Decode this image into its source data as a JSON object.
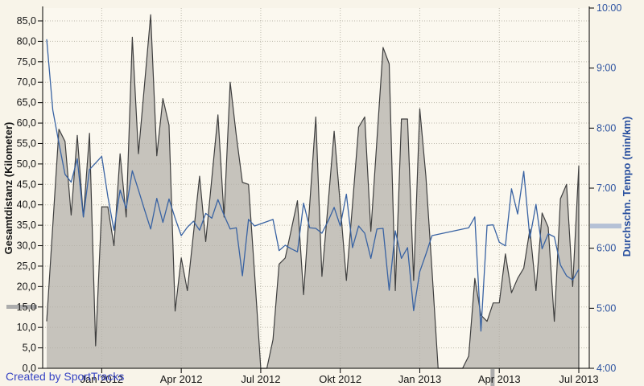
{
  "watermark": "Created by SportTracks",
  "chart_data": {
    "type": "area",
    "title": "",
    "x_unit": "week",
    "x_ticks": [
      {
        "label": "Jan 2012",
        "week": 9
      },
      {
        "label": "Apr 2012",
        "week": 22
      },
      {
        "label": "Jul 2012",
        "week": 35
      },
      {
        "label": "Okt 2012",
        "week": 48
      },
      {
        "label": "Jan 2013",
        "week": 61
      },
      {
        "label": "Apr 2013",
        "week": 74
      },
      {
        "label": "Jul 2013",
        "week": 87
      }
    ],
    "left_axis": {
      "title": "Gesamtdistanz (Kilometer)",
      "min": 0,
      "max": 85,
      "tick_step": 5,
      "tick_labels": [
        "0,0",
        "5,0",
        "10,0",
        "15,0",
        "20,0",
        "25,0",
        "30,0",
        "35,0",
        "40,0",
        "45,0",
        "50,0",
        "55,0",
        "60,0",
        "65,0",
        "70,0",
        "75,0",
        "80,0",
        "85,0"
      ]
    },
    "right_axis": {
      "title": "Durchschn. Tempo (min/km)",
      "min": 4,
      "max": 10,
      "tick_step": 1,
      "tick_labels": [
        "4:00",
        "5:00",
        "6:00",
        "7:00",
        "8:00",
        "9:00",
        "10:00"
      ]
    },
    "series": [
      {
        "name": "Gesamtdistanz (Kilometer)",
        "type": "area",
        "axis": "left",
        "fill": "rgba(177,175,168,0.72)",
        "outline": "#3F3F3F",
        "values": [
          11.5,
          35,
          58.5,
          55.5,
          37.5,
          57,
          37,
          57.5,
          5.5,
          39.5,
          39.5,
          30,
          52.5,
          37,
          81,
          52.5,
          69.5,
          86.5,
          52,
          66,
          59.5,
          14,
          27,
          19,
          33,
          47,
          31,
          46.5,
          62,
          37,
          70,
          57,
          45.5,
          45,
          23,
          0,
          0,
          7,
          25.5,
          27,
          34,
          41,
          18,
          40,
          61.5,
          22.5,
          40,
          58,
          40,
          21.5,
          40,
          59,
          61.5,
          33.5,
          56,
          78.5,
          74.5,
          19,
          61,
          61,
          21.5,
          63.5,
          47,
          24,
          0,
          0,
          0,
          0,
          0,
          3,
          22,
          13,
          11.5,
          16,
          16,
          28,
          18.5,
          22,
          24.5,
          34,
          19,
          38,
          34.5,
          11.5,
          41.5,
          45,
          20,
          49.5
        ]
      },
      {
        "name": "Durchschn. Tempo (min/km)",
        "type": "line",
        "axis": "right",
        "color": "#3963A3",
        "values": [
          9.48,
          8.3,
          7.75,
          7.23,
          7.1,
          7.49,
          6.52,
          7.31,
          7.42,
          7.53,
          6.86,
          6.3,
          6.97,
          6.66,
          7.29,
          6.97,
          6.64,
          6.32,
          6.83,
          6.43,
          6.82,
          6.5,
          6.21,
          6.35,
          6.45,
          6.3,
          6.58,
          6.5,
          6.81,
          6.55,
          6.32,
          6.34,
          5.54,
          6.48,
          6.37,
          null,
          null,
          6.48,
          5.96,
          6.05,
          5.99,
          5.94,
          6.75,
          6.34,
          6.33,
          6.25,
          6.45,
          6.68,
          6.37,
          6.9,
          6.01,
          6.37,
          6.25,
          5.83,
          6.32,
          6.33,
          5.3,
          6.29,
          5.83,
          6.01,
          4.96,
          5.61,
          5.9,
          6.21,
          null,
          null,
          null,
          null,
          null,
          6.34,
          6.52,
          4.62,
          6.38,
          6.39,
          6.1,
          6.04,
          6.99,
          6.57,
          7.28,
          6.17,
          6.73,
          5.99,
          6.24,
          6.19,
          5.72,
          5.54,
          5.47,
          5.65
        ]
      }
    ],
    "markers": {
      "left_axis_value": 15.05,
      "right_axis_value": 6.37,
      "x_axis_week": 72.9,
      "gray": "#ACACAC",
      "blue_gray": "#B5C1D6"
    },
    "colors": {
      "background": "#F8F4E9",
      "plot_background": "#FBF8EF",
      "gridline": "#BDB9AC",
      "axis_line": "#000000"
    },
    "grid": true,
    "legend": "none"
  }
}
